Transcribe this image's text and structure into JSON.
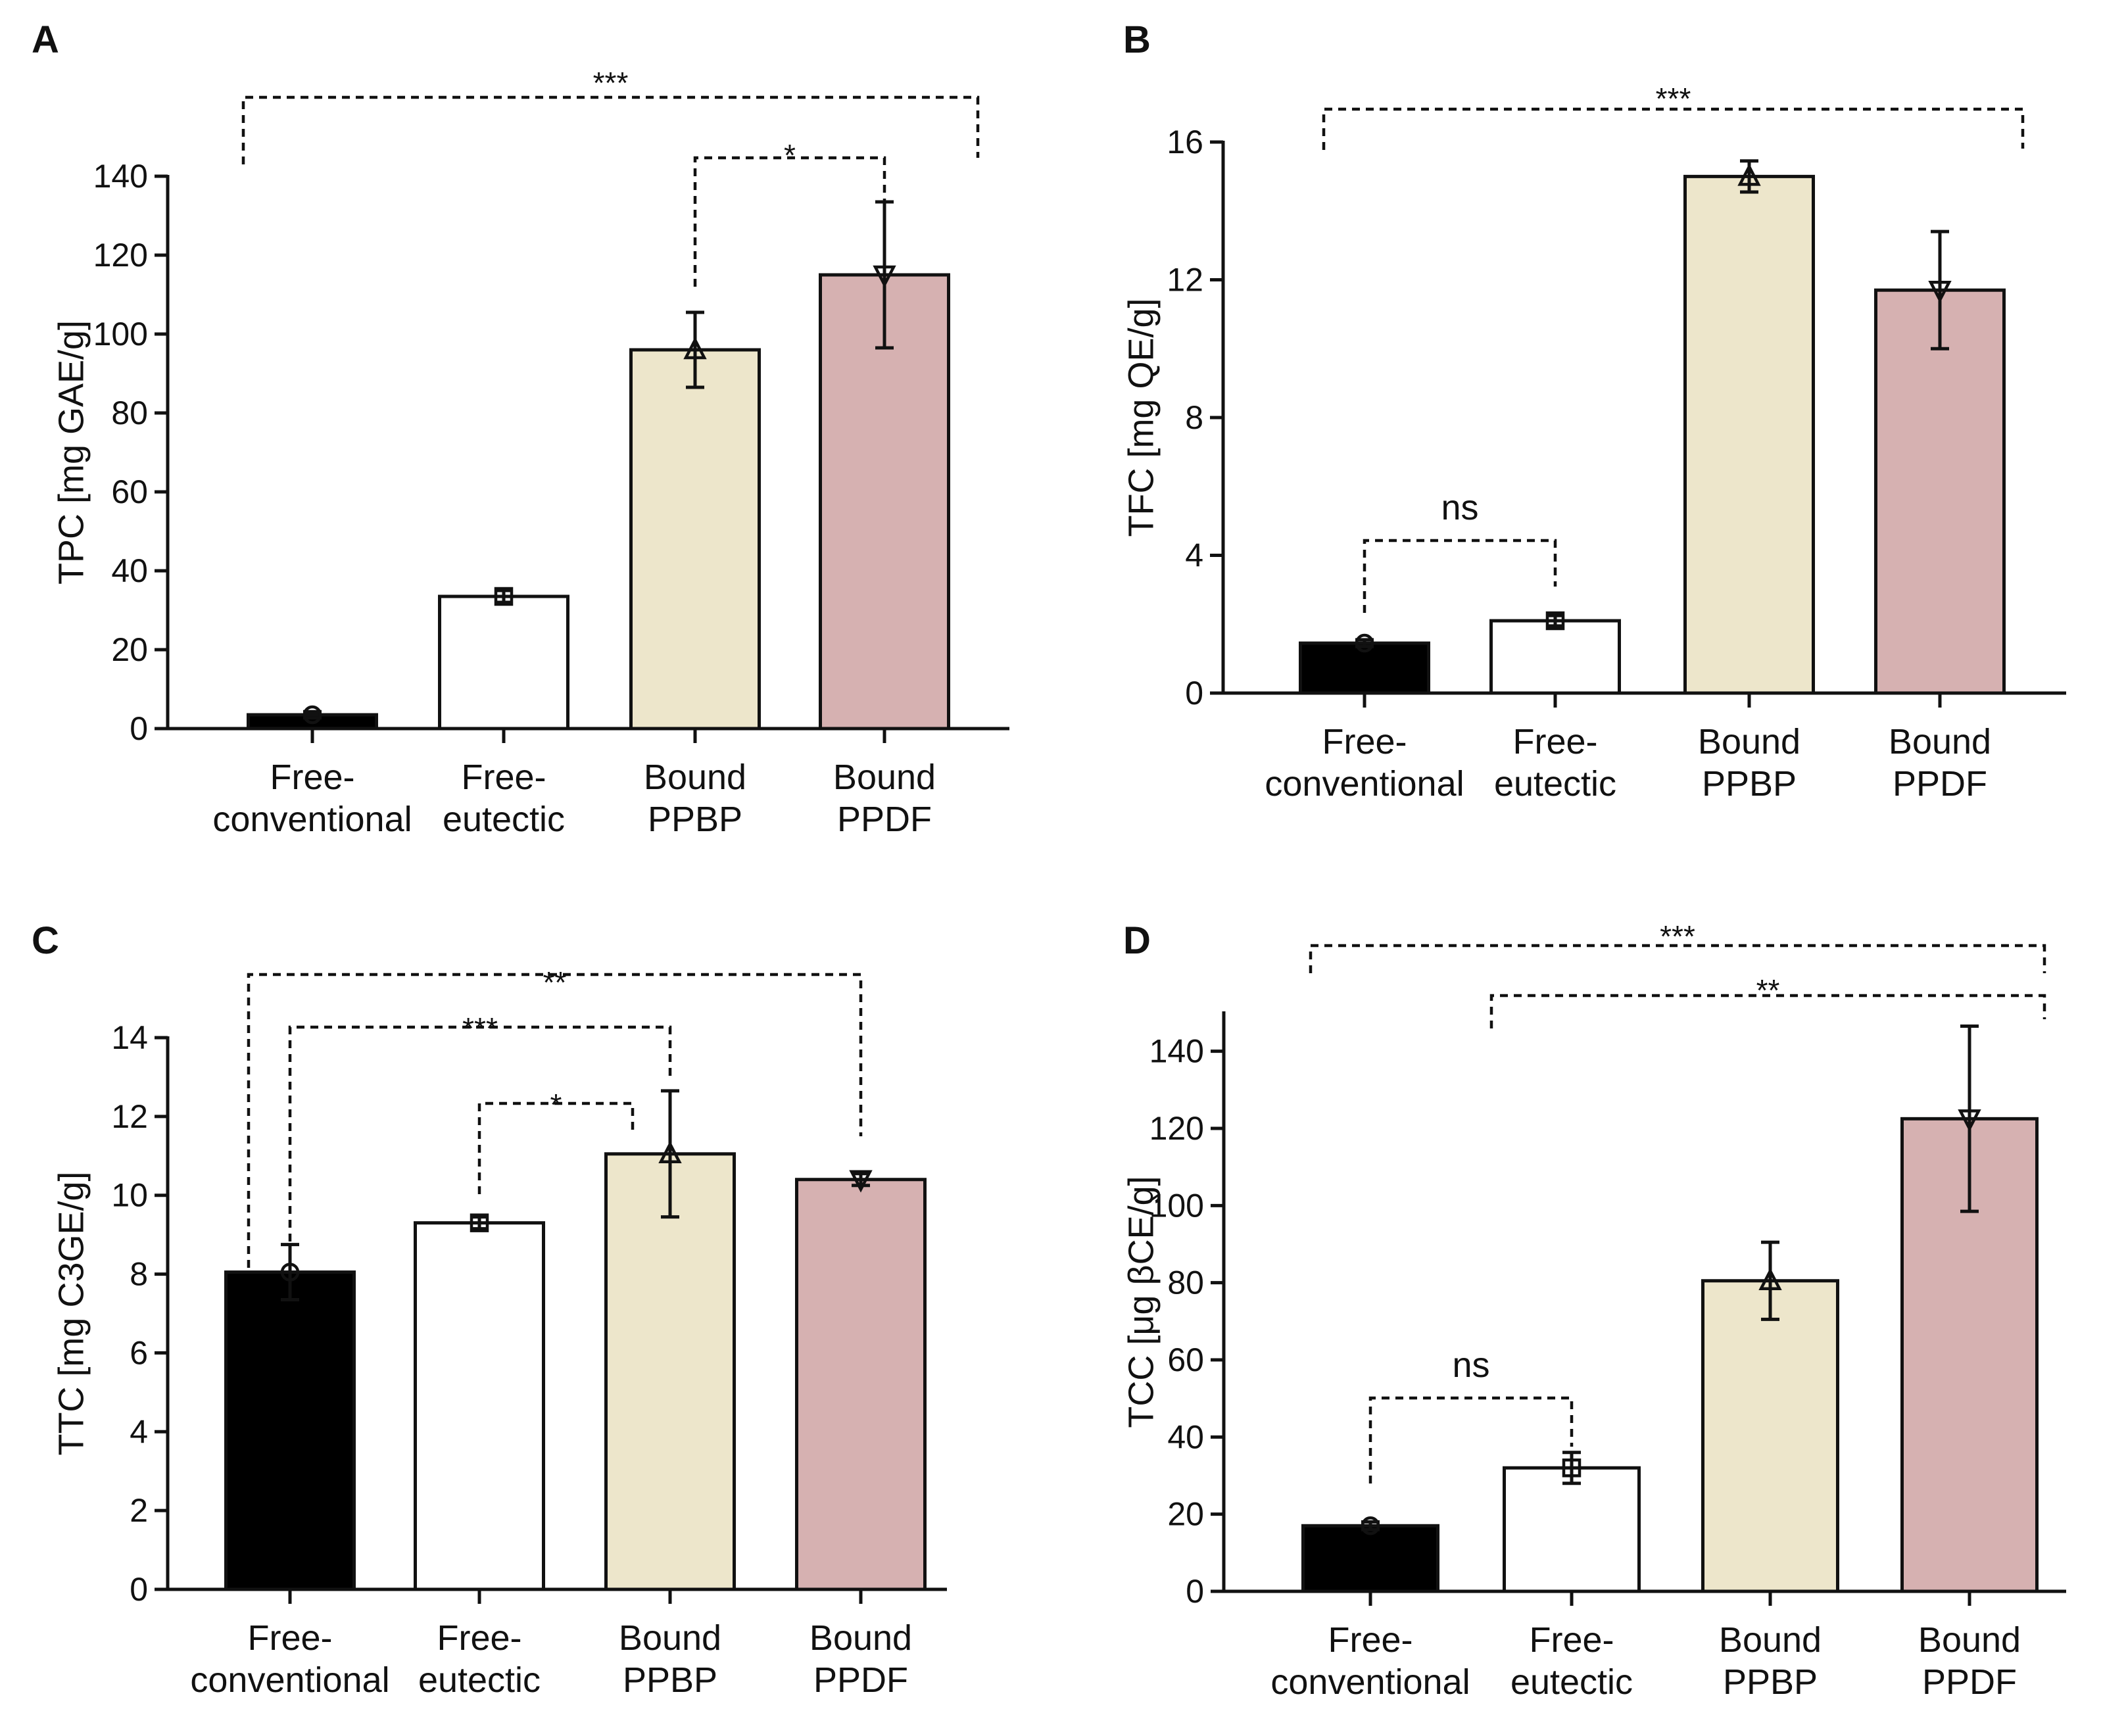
{
  "chart_data": [
    {
      "panel": "A",
      "type": "bar",
      "categories": [
        "Free-conventional",
        "Free-eutectic",
        "Bound PPBP",
        "Bound PPDF"
      ],
      "category_lines": [
        [
          "Free-",
          "conventional"
        ],
        [
          "Free-",
          "eutectic"
        ],
        [
          "Bound",
          "PPBP"
        ],
        [
          "Bound",
          "PPDF"
        ]
      ],
      "values": [
        3.5,
        33.5,
        96,
        115
      ],
      "errors": [
        0.8,
        1.5,
        9.5,
        18.5
      ],
      "markers": [
        "circle",
        "square",
        "triangle-up",
        "triangle-down"
      ],
      "ylabel": "TPC [mg GAE/g]",
      "ylim": [
        0,
        140
      ],
      "yticks": [
        0,
        20,
        40,
        60,
        80,
        100,
        120,
        140
      ],
      "ytick_labels": [
        "0",
        "20",
        "40",
        "60",
        "80",
        "100",
        "120",
        "140"
      ],
      "significance": [
        {
          "from": 0,
          "to": 3,
          "label": "***"
        },
        {
          "from": 2,
          "to": 3,
          "label": "*"
        }
      ]
    },
    {
      "panel": "B",
      "type": "bar",
      "categories": [
        "Free-conventional",
        "Free-eutectic",
        "Bound PPBP",
        "Bound PPDF"
      ],
      "category_lines": [
        [
          "Free-",
          "conventional"
        ],
        [
          "Free-",
          "eutectic"
        ],
        [
          "Bound",
          "PPBP"
        ],
        [
          "Bound",
          "PPDF"
        ]
      ],
      "values": [
        1.45,
        2.1,
        15.0,
        11.7
      ],
      "errors": [
        0.1,
        0.15,
        0.45,
        1.7
      ],
      "markers": [
        "circle",
        "square",
        "triangle-up",
        "triangle-down"
      ],
      "ylabel": "TFC [mg QE/g]",
      "ylim": [
        0,
        16
      ],
      "yticks": [
        0,
        4,
        8,
        12,
        16
      ],
      "ytick_labels": [
        "0",
        "4",
        "8",
        "12",
        "16"
      ],
      "significance": [
        {
          "from": 0,
          "to": 3,
          "label": "***"
        },
        {
          "from": 0,
          "to": 1,
          "label": "ns"
        }
      ]
    },
    {
      "panel": "C",
      "type": "bar",
      "categories": [
        "Free-conventional",
        "Free-eutectic",
        "Bound PPBP",
        "Bound PPDF"
      ],
      "category_lines": [
        [
          "Free-",
          "conventional"
        ],
        [
          "Free-",
          "eutectic"
        ],
        [
          "Bound",
          "PPBP"
        ],
        [
          "Bound",
          "PPDF"
        ]
      ],
      "values": [
        8.05,
        9.3,
        11.05,
        10.4
      ],
      "errors": [
        0.7,
        0.15,
        1.6,
        0.15
      ],
      "markers": [
        "circle",
        "square",
        "triangle-up",
        "triangle-down"
      ],
      "ylabel": "TTC [mg C3GE/g]",
      "ylim": [
        0,
        14
      ],
      "yticks": [
        0,
        2,
        4,
        6,
        8,
        10,
        12,
        14
      ],
      "ytick_labels": [
        "0",
        "2",
        "4",
        "6",
        "8",
        "10",
        "12",
        "14"
      ],
      "significance": [
        {
          "from": 0,
          "to": 3,
          "label": "**"
        },
        {
          "from": 0,
          "to": 2,
          "label": "***"
        },
        {
          "from": 1,
          "to": 2,
          "label": "*"
        }
      ]
    },
    {
      "panel": "D",
      "type": "bar",
      "categories": [
        "Free-conventional",
        "Free-eutectic",
        "Bound PPBP",
        "Bound PPDF"
      ],
      "category_lines": [
        [
          "Free-",
          "conventional"
        ],
        [
          "Free-",
          "eutectic"
        ],
        [
          "Bound",
          "PPBP"
        ],
        [
          "Bound",
          "PPDF"
        ]
      ],
      "values": [
        17,
        32,
        80.5,
        122.5
      ],
      "errors": [
        1,
        4,
        10,
        24
      ],
      "markers": [
        "circle",
        "square",
        "triangle-up",
        "triangle-down"
      ],
      "ylabel": "TCC [μg βCE/g]",
      "ylim": [
        0,
        150
      ],
      "yticks": [
        0,
        20,
        40,
        60,
        80,
        100,
        120,
        140
      ],
      "ytick_labels": [
        "0",
        "20",
        "40",
        "60",
        "80",
        "100",
        "120",
        "140"
      ],
      "significance": [
        {
          "from": 0,
          "to": 3,
          "label": "***"
        },
        {
          "from": 1,
          "to": 3,
          "label": "**"
        },
        {
          "from": 0,
          "to": 1,
          "label": "ns"
        }
      ]
    }
  ],
  "colors": {
    "bars": [
      "#000000",
      "#ffffff",
      "#ede6cb",
      "#d6b1b1"
    ],
    "axis": "#111111"
  }
}
